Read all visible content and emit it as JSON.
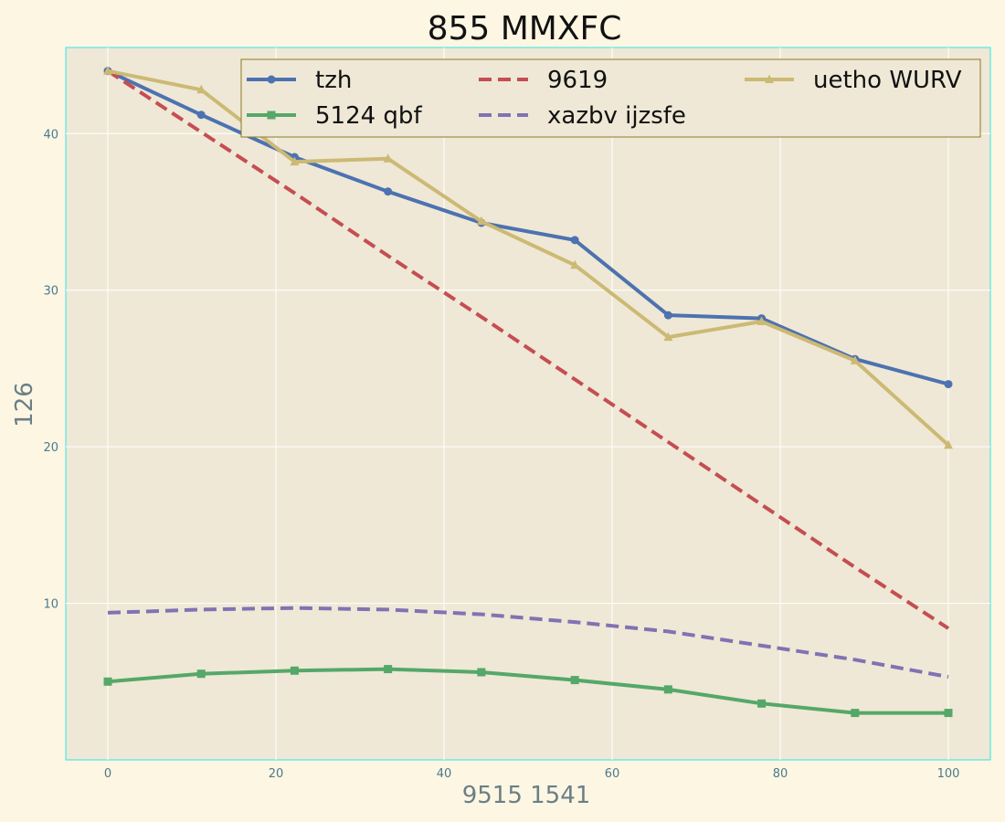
{
  "chart_data": {
    "type": "line",
    "title": "855 MMXFC",
    "xlabel": "9515 1541",
    "ylabel": "126",
    "xlim": [
      -5,
      105
    ],
    "ylim": [
      0,
      45.5
    ],
    "xticks": [
      0,
      20,
      40,
      60,
      80,
      100
    ],
    "yticks": [
      10,
      20,
      30,
      40
    ],
    "grid": true,
    "legend_position": "top",
    "x": [
      0,
      11.11,
      22.22,
      33.33,
      44.44,
      55.56,
      66.67,
      77.78,
      88.89,
      100
    ],
    "series": [
      {
        "name": "tzh",
        "color": "#4c72b0",
        "dash": "solid",
        "marker": "circle",
        "values": [
          44.0,
          41.2,
          38.5,
          36.3,
          34.3,
          33.2,
          28.4,
          28.2,
          25.6,
          24.0
        ]
      },
      {
        "name": "9619",
        "color": "#c44e52",
        "dash": "dashed",
        "marker": "none",
        "values": [
          44.0,
          40.1,
          36.2,
          32.2,
          28.3,
          24.3,
          20.3,
          16.3,
          12.3,
          8.4
        ]
      },
      {
        "name": "uetho WURV",
        "color": "#ccb974",
        "dash": "solid",
        "marker": "triangle",
        "values": [
          44.0,
          42.8,
          38.2,
          38.4,
          34.4,
          31.6,
          27.0,
          28.0,
          25.5,
          20.1
        ]
      },
      {
        "name": "5124 qbf",
        "color": "#55a868",
        "dash": "solid",
        "marker": "square",
        "values": [
          5.0,
          5.5,
          5.7,
          5.8,
          5.6,
          5.1,
          4.5,
          3.6,
          3.0,
          3.0
        ]
      },
      {
        "name": "xazbv ijzsfe",
        "color": "#8172b3",
        "dash": "dashed",
        "marker": "none",
        "values": [
          9.4,
          9.6,
          9.7,
          9.6,
          9.3,
          8.8,
          8.2,
          7.3,
          6.4,
          5.3
        ]
      }
    ]
  }
}
